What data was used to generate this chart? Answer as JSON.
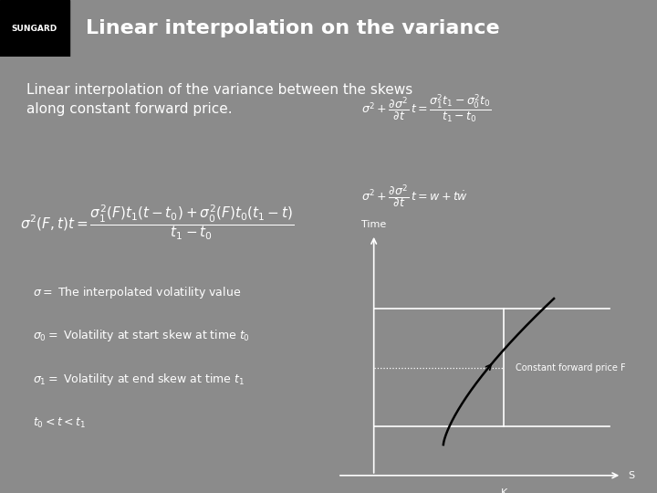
{
  "title": "Linear interpolation on the variance",
  "sungard_text": "SUNGARD",
  "subtitle": "Linear interpolation of the variance between the skews\nalong constant forward price.",
  "bg_color": "#8B8B8B",
  "header_color": "#8B1A1A",
  "header_text_color": "#FFFFFF",
  "main_text_color": "#FFFFFF",
  "formula_main": "$\\sigma^2(F,t)t = \\dfrac{\\sigma_1^2(F)t_1(t-t_0)+\\sigma_0^2(F)t_0(t_1-t)}{t_1-t_0}$",
  "formula_top_right_1": "$\\sigma^2 + \\dfrac{\\partial\\sigma^2}{\\partial t}\\,t = \\dfrac{\\sigma_1^2 t_1 - \\sigma_0^2 t_0}{t_1 - t_0}$",
  "formula_top_right_2": "$\\sigma^2 + \\dfrac{\\partial\\sigma^2}{\\partial t}\\,t = w + t\\dot{w}$",
  "legend_sigma": "$\\sigma = $ The interpolated volatility value",
  "legend_sigma0": "$\\sigma_0 = $ Volatility at start skew at time $t_0$",
  "legend_sigma1": "$\\sigma_1 = $ Volatility at end skew at time $t_1$",
  "legend_t": "$t_0 < t < t_1$",
  "graph_label_time": "Time",
  "graph_label_K": "K",
  "graph_label_S": "S",
  "graph_label_F": "Constant forward price F"
}
